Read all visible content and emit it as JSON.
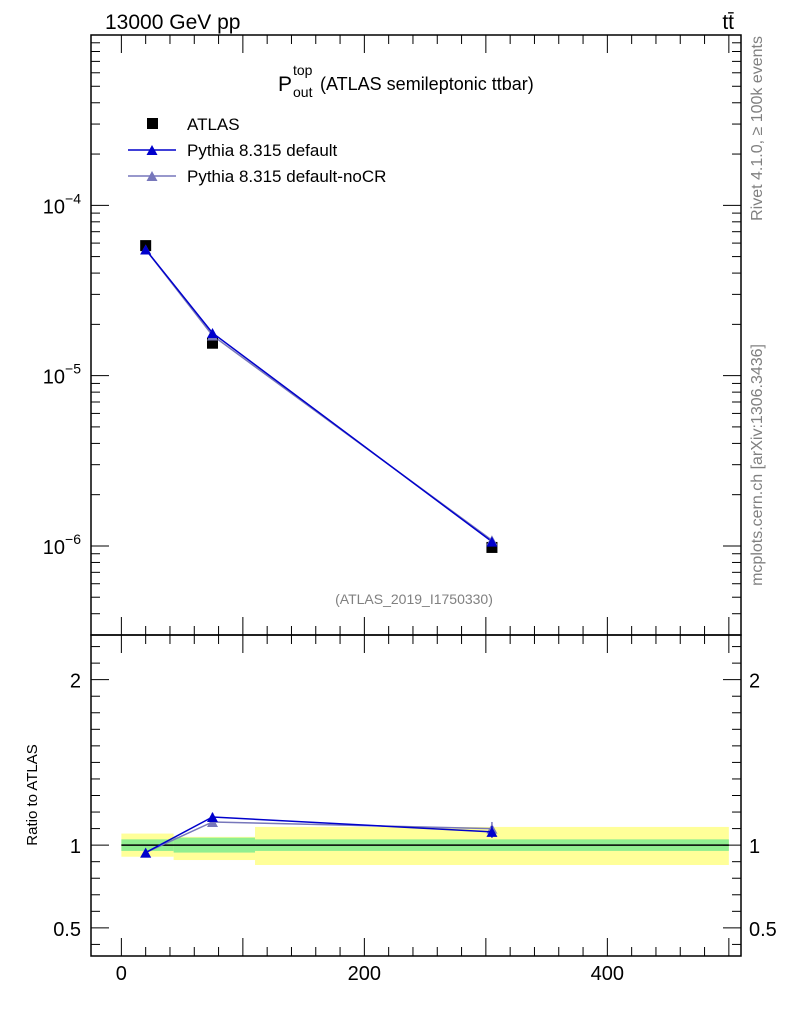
{
  "header": {
    "energy_label": "13000 GeV pp",
    "process_label": "tt̄"
  },
  "side_labels": {
    "rivet": "Rivet 4.1.0, ≥ 100k events",
    "mcplots": "mcplots.cern.ch [arXiv:1306.3436]"
  },
  "colors": {
    "atlas": "#000000",
    "pythia_default": "#0000cc",
    "pythia_nocr": "#7777bb",
    "band_inner": "#90ee90",
    "band_outer": "#ffff99"
  },
  "chart_data": [
    {
      "type": "line",
      "panel": "main",
      "title_main": "P",
      "title_sup": "top",
      "title_sub": "out",
      "title_rest": "(ATLAS semileptonic ttbar)",
      "analysis_id": "(ATLAS_2019_I1750330)",
      "yscale": "log",
      "ylim": [
        3e-07,
        0.001
      ],
      "xlim": [
        -25,
        510
      ],
      "ytick_labels": [
        {
          "base": "10",
          "exp": "−4",
          "value": 0.0001
        },
        {
          "base": "10",
          "exp": "−5",
          "value": 1e-05
        },
        {
          "base": "10",
          "exp": "−6",
          "value": 1e-06
        }
      ],
      "legend": {
        "position": "top-left",
        "entries": [
          "ATLAS",
          "Pythia 8.315 default",
          "Pythia 8.315 default-noCR"
        ]
      },
      "series": [
        {
          "name": "ATLAS",
          "marker": "square",
          "x": [
            20,
            75,
            305
          ],
          "y": [
            5.8e-05,
            1.55e-05,
            9.8e-07
          ]
        },
        {
          "name": "Pythia 8.315 default",
          "marker": "triangle",
          "x": [
            20,
            75,
            305
          ],
          "y": [
            5.5e-05,
            1.78e-05,
            1.06e-06
          ]
        },
        {
          "name": "Pythia 8.315 default-noCR",
          "marker": "triangle",
          "x": [
            20,
            75,
            305
          ],
          "y": [
            5.5e-05,
            1.72e-05,
            1.08e-06
          ]
        }
      ]
    },
    {
      "type": "line",
      "panel": "ratio",
      "ylabel": "Ratio to ATLAS",
      "ylim": [
        0.33,
        2.27
      ],
      "xlim": [
        -25,
        510
      ],
      "yticks": [
        0.5,
        1,
        2
      ],
      "ytick_labels": [
        "0.5",
        "1",
        "2"
      ],
      "xticks": [
        0,
        200,
        400
      ],
      "xtick_labels": [
        "0",
        "200",
        "400"
      ],
      "bands": [
        {
          "x0": 0,
          "x1": 43,
          "inner": [
            0.965,
            1.035
          ],
          "outer": [
            0.93,
            1.07
          ]
        },
        {
          "x0": 43,
          "x1": 110,
          "inner": [
            0.955,
            1.045
          ],
          "outer": [
            0.91,
            1.05
          ]
        },
        {
          "x0": 110,
          "x1": 500,
          "inner": [
            0.965,
            1.035
          ],
          "outer": [
            0.88,
            1.11
          ]
        }
      ],
      "series": [
        {
          "name": "Pythia 8.315 default",
          "x": [
            20,
            75,
            305
          ],
          "y": [
            0.955,
            1.17,
            1.08
          ],
          "err": [
            0.01,
            0.025,
            0.035
          ]
        },
        {
          "name": "Pythia 8.315 default-noCR",
          "x": [
            20,
            75,
            305
          ],
          "y": [
            0.955,
            1.14,
            1.1
          ],
          "err": [
            0.01,
            0.02,
            0.04
          ]
        }
      ]
    }
  ]
}
